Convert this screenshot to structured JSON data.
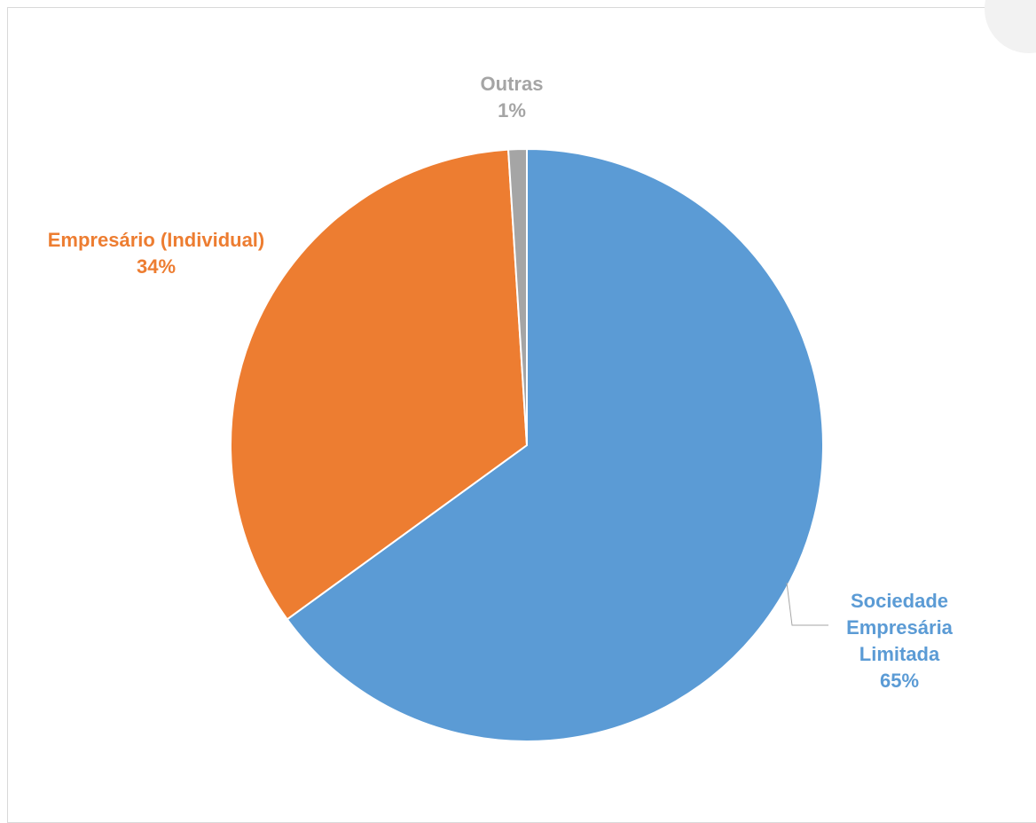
{
  "chart_data": {
    "type": "pie",
    "slices": [
      {
        "name": "Sociedade Empresária Limitada",
        "label_lines": [
          "Sociedade",
          "Empresária",
          "Limitada"
        ],
        "value": 65,
        "display": "65%",
        "color": "#5B9BD5"
      },
      {
        "name": "Empresário (Individual)",
        "label_lines": [
          "Empresário (Individual)"
        ],
        "value": 34,
        "display": "34%",
        "color": "#ED7D31"
      },
      {
        "name": "Outras",
        "label_lines": [
          "Outras"
        ],
        "value": 1,
        "display": "1%",
        "color": "#A5A5A5"
      }
    ],
    "start": "12 o'clock",
    "direction": "clockwise",
    "legend": "none"
  }
}
